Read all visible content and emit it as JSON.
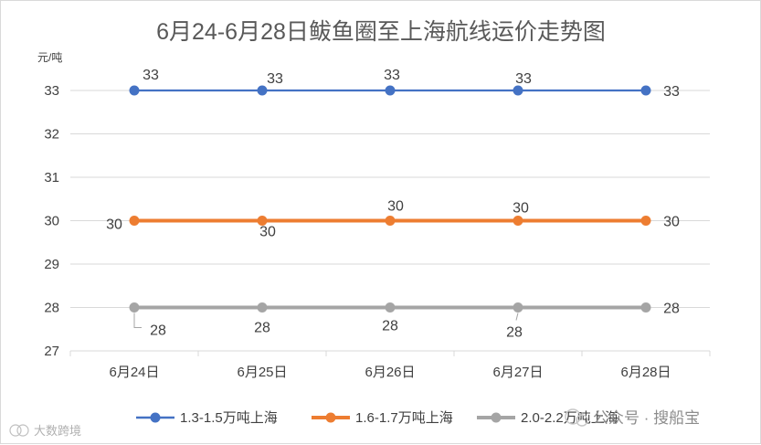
{
  "chart_data": {
    "type": "line",
    "title": "6月24-6月28日鲅鱼圈至上海航线运价走势图",
    "ylabel": "元/吨",
    "categories": [
      "6月24日",
      "6月25日",
      "6月26日",
      "6月27日",
      "6月28日"
    ],
    "ylim": [
      27,
      33
    ],
    "yticks": [
      "27",
      "28",
      "29",
      "30",
      "31",
      "32",
      "33"
    ],
    "grid": true,
    "legend_position": "bottom",
    "series": [
      {
        "name": "1.3-1.5万吨上海",
        "color": "#4472c4",
        "values": [
          33,
          33,
          33,
          33,
          33
        ]
      },
      {
        "name": "1.6-1.7万吨上海",
        "color": "#ed7d31",
        "values": [
          30,
          30,
          30,
          30,
          30
        ]
      },
      {
        "name": "2.0-2.2万吨上海",
        "color": "#a5a5a5",
        "values": [
          28,
          28,
          28,
          28,
          28
        ]
      }
    ]
  },
  "watermark": {
    "account": "公众号 · 搜船宝",
    "source": "大数跨境"
  }
}
